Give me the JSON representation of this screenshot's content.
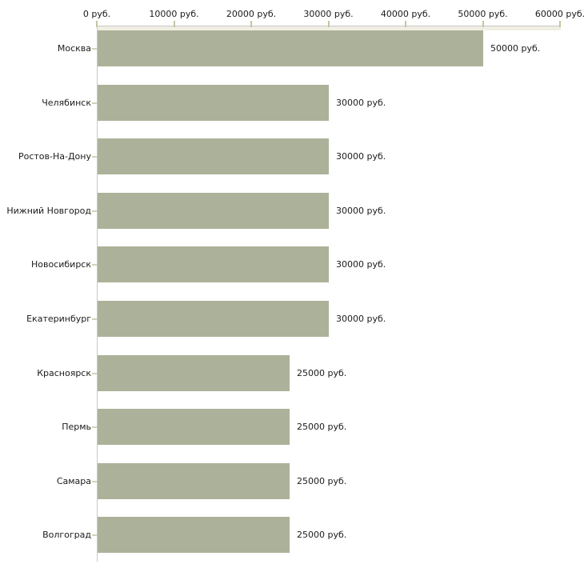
{
  "chart_data": {
    "type": "bar",
    "orientation": "horizontal",
    "title": "",
    "xlabel": "",
    "ylabel": "",
    "unit": "руб.",
    "xlim": [
      0,
      60000
    ],
    "grid": "off",
    "legend": "none",
    "categories": [
      "Москва",
      "Челябинск",
      "Ростов-На-Дону",
      "Нижний Новгород",
      "Новосибирск",
      "Екатеринбург",
      "Красноярск",
      "Пермь",
      "Самара",
      "Волгоград"
    ],
    "values": [
      50000,
      30000,
      30000,
      30000,
      30000,
      30000,
      25000,
      25000,
      25000,
      25000
    ],
    "value_labels": [
      "50000 руб.",
      "30000 руб.",
      "30000 руб.",
      "30000 руб.",
      "30000 руб.",
      "30000 руб.",
      "25000 руб.",
      "25000 руб.",
      "25000 руб.",
      "25000 руб."
    ],
    "x_ticks": [
      {
        "value": 0,
        "label": "0 руб."
      },
      {
        "value": 10000,
        "label": "10000 руб."
      },
      {
        "value": 20000,
        "label": "20000 руб."
      },
      {
        "value": 30000,
        "label": "30000 руб."
      },
      {
        "value": 40000,
        "label": "40000 руб."
      },
      {
        "value": 50000,
        "label": "50000 руб."
      },
      {
        "value": 60000,
        "label": "60000 руб."
      }
    ],
    "colors": {
      "bar": "#acb299",
      "axis_line": "#c8c8c8",
      "x_tick_mark": "#c8c49e",
      "category_tick_mark": "#d5d1b8",
      "text": "#1b1b1b",
      "background": "#ffffff"
    }
  }
}
